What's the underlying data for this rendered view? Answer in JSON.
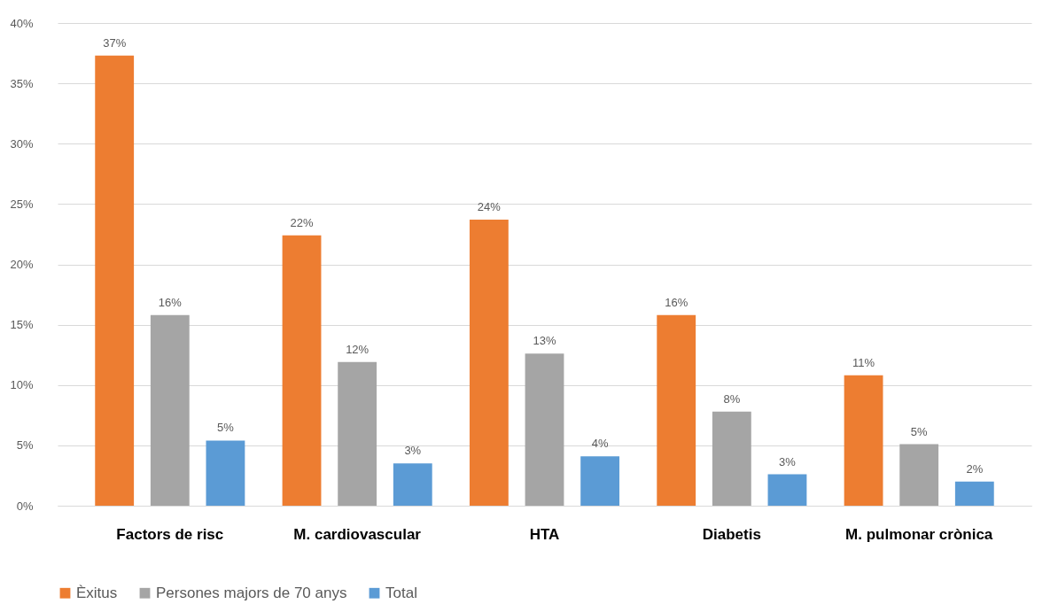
{
  "chart_data": {
    "type": "bar",
    "categories": [
      "Factors de risc",
      "M. cardiovascular",
      "HTA",
      "Diabetis",
      "M. pulmonar crònica"
    ],
    "series": [
      {
        "name": "Èxitus",
        "color": "#ed7d31",
        "values": [
          37.3,
          22.4,
          23.7,
          15.8,
          10.8
        ],
        "value_labels": [
          "37%",
          "22%",
          "24%",
          "16%",
          "11%"
        ]
      },
      {
        "name": "Persones majors de 70 anys",
        "color": "#a5a5a5",
        "values": [
          15.8,
          11.9,
          12.6,
          7.8,
          5.1
        ],
        "value_labels": [
          "16%",
          "12%",
          "13%",
          "8%",
          "5%"
        ]
      },
      {
        "name": "Total",
        "color": "#5b9bd5",
        "values": [
          5.4,
          3.5,
          4.1,
          2.6,
          2.0
        ],
        "value_labels": [
          "5%",
          "3%",
          "4%",
          "3%",
          "2%"
        ]
      }
    ],
    "ylim": [
      0,
      40
    ],
    "yticks": [
      {
        "value": 0,
        "label": "0%"
      },
      {
        "value": 5,
        "label": "5%"
      },
      {
        "value": 10,
        "label": "10%"
      },
      {
        "value": 15,
        "label": "15%"
      },
      {
        "value": 20,
        "label": "20%"
      },
      {
        "value": 25,
        "label": "25%"
      },
      {
        "value": 30,
        "label": "30%"
      },
      {
        "value": 35,
        "label": "35%"
      },
      {
        "value": 40,
        "label": "40%"
      }
    ],
    "grid": "y",
    "legend": "bottom"
  }
}
